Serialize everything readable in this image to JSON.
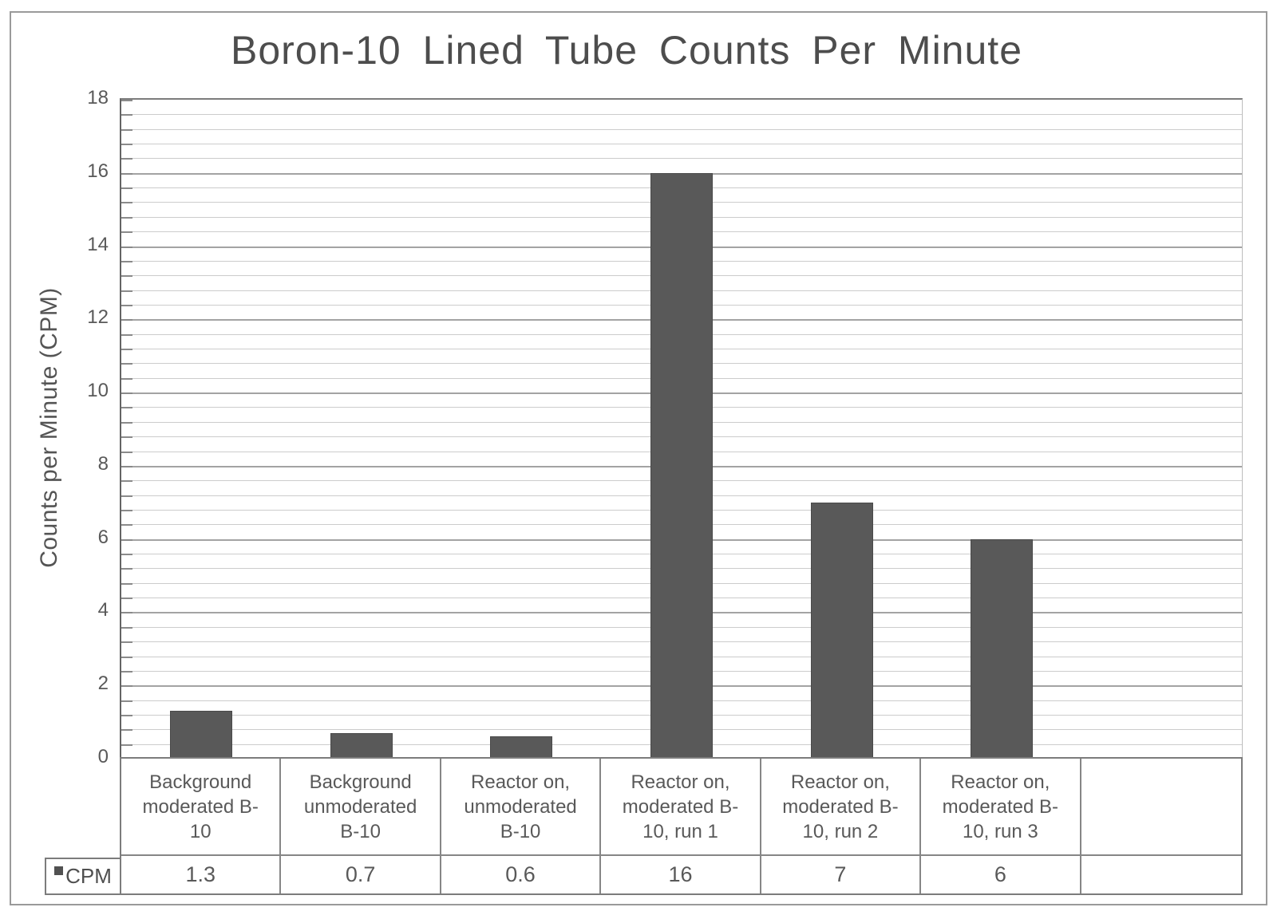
{
  "chart_data": {
    "type": "bar",
    "title": "Boron-10 Lined Tube Counts Per Minute",
    "ylabel": "Counts per Minute (CPM)",
    "xlabel": "",
    "categories": [
      "Background moderated B-10",
      "Background unmoderated B-10",
      "Reactor on, unmoderated B-10",
      "Reactor on, moderated B-10, run 1",
      "Reactor on, moderated B-10, run 2",
      "Reactor on, moderated B-10, run 3"
    ],
    "categories_display": [
      "Background\nmoderated B-\n10",
      "Background\nunmoderated\nB-10",
      "Reactor on,\nunmoderated\nB-10",
      "Reactor on,\nmoderated B-\n10, run 1",
      "Reactor on,\nmoderated B-\n10, run 2",
      "Reactor on,\nmoderated B-\n10, run 3"
    ],
    "series": [
      {
        "name": "CPM",
        "values": [
          1.3,
          0.7,
          0.6,
          16,
          7,
          6
        ]
      }
    ],
    "values_display": [
      "1.3",
      "0.7",
      "0.6",
      "16",
      "7",
      "6"
    ],
    "ylim": [
      0,
      18
    ],
    "y_major_unit": 2,
    "y_minor_unit": 0.4,
    "y_ticks": [
      "0",
      "2",
      "4",
      "6",
      "8",
      "10",
      "12",
      "14",
      "16",
      "18"
    ],
    "grid": {
      "horizontal_major": true,
      "horizontal_minor": true,
      "vertical": false
    },
    "legend_position": "data-table-left",
    "data_table": {
      "shown": true,
      "legend_key": true,
      "empty_trailing_column": true
    },
    "colors": {
      "bar_fill": "#595959",
      "bar_border": "#4a4a4a",
      "major_grid": "#a3a3a3",
      "minor_grid": "#cccccc",
      "axis_line": "#7c7c7c",
      "table_border": "#868686",
      "figure_border": "#9a9a9a",
      "title_text": "#4d4d4d",
      "label_text": "#595959",
      "background": "#ffffff"
    }
  }
}
